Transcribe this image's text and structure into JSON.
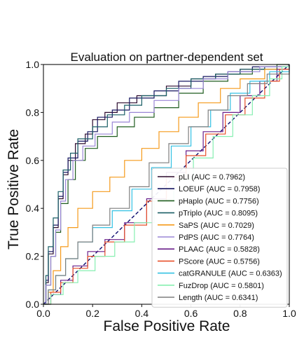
{
  "chart_data": {
    "type": "line",
    "title": "Evaluation on partner-dependent set",
    "xlabel": "False Positive Rate",
    "ylabel": "True Positive Rate",
    "xlim": [
      0,
      1
    ],
    "ylim": [
      0,
      1
    ],
    "xticks": [
      "0.0",
      "0.2",
      "0.4",
      "0.6",
      "0.8",
      "1.0"
    ],
    "yticks": [
      "0.0",
      "0.2",
      "0.4",
      "0.6",
      "0.8",
      "1.0"
    ],
    "grid": false,
    "legend_position": "lower-right",
    "diagonal_reference": true,
    "series": [
      {
        "name": "pLI (AUC = 0.7962)",
        "color": "#2b0a2e",
        "points": [
          [
            0,
            0
          ],
          [
            0.01,
            0.09
          ],
          [
            0.02,
            0.21
          ],
          [
            0.04,
            0.32
          ],
          [
            0.06,
            0.44
          ],
          [
            0.08,
            0.54
          ],
          [
            0.1,
            0.6
          ],
          [
            0.13,
            0.67
          ],
          [
            0.17,
            0.71
          ],
          [
            0.2,
            0.77
          ],
          [
            0.25,
            0.8
          ],
          [
            0.3,
            0.84
          ],
          [
            0.38,
            0.87
          ],
          [
            0.5,
            0.91
          ],
          [
            0.6,
            0.94
          ],
          [
            0.7,
            0.96
          ],
          [
            0.8,
            0.98
          ],
          [
            0.9,
            0.99
          ],
          [
            1,
            1
          ]
        ]
      },
      {
        "name": "LOEUF (AUC = 0.7958)",
        "color": "#161661",
        "points": [
          [
            0,
            0
          ],
          [
            0.01,
            0.1
          ],
          [
            0.02,
            0.22
          ],
          [
            0.04,
            0.33
          ],
          [
            0.06,
            0.45
          ],
          [
            0.08,
            0.55
          ],
          [
            0.1,
            0.61
          ],
          [
            0.14,
            0.68
          ],
          [
            0.18,
            0.72
          ],
          [
            0.22,
            0.78
          ],
          [
            0.28,
            0.81
          ],
          [
            0.35,
            0.86
          ],
          [
            0.45,
            0.89
          ],
          [
            0.55,
            0.93
          ],
          [
            0.65,
            0.95
          ],
          [
            0.75,
            0.97
          ],
          [
            0.85,
            0.99
          ],
          [
            1,
            1
          ]
        ]
      },
      {
        "name": "pHaplo (AUC = 0.7756)",
        "color": "#1f5c1f",
        "points": [
          [
            0,
            0
          ],
          [
            0.01,
            0.08
          ],
          [
            0.03,
            0.2
          ],
          [
            0.05,
            0.3
          ],
          [
            0.07,
            0.42
          ],
          [
            0.1,
            0.52
          ],
          [
            0.13,
            0.6
          ],
          [
            0.17,
            0.65
          ],
          [
            0.22,
            0.7
          ],
          [
            0.3,
            0.74
          ],
          [
            0.37,
            0.78
          ],
          [
            0.45,
            0.82
          ],
          [
            0.55,
            0.88
          ],
          [
            0.65,
            0.93
          ],
          [
            0.75,
            0.96
          ],
          [
            0.85,
            0.98
          ],
          [
            0.95,
            1
          ],
          [
            1,
            1
          ]
        ]
      },
      {
        "name": "pTriplo (AUC = 0.8095)",
        "color": "#1a5f66",
        "points": [
          [
            0,
            0
          ],
          [
            0.01,
            0.12
          ],
          [
            0.02,
            0.24
          ],
          [
            0.04,
            0.36
          ],
          [
            0.06,
            0.47
          ],
          [
            0.08,
            0.56
          ],
          [
            0.11,
            0.63
          ],
          [
            0.14,
            0.69
          ],
          [
            0.2,
            0.74
          ],
          [
            0.26,
            0.79
          ],
          [
            0.33,
            0.83
          ],
          [
            0.4,
            0.87
          ],
          [
            0.5,
            0.9
          ],
          [
            0.6,
            0.94
          ],
          [
            0.7,
            0.96
          ],
          [
            0.8,
            0.98
          ],
          [
            0.9,
            0.99
          ],
          [
            1,
            1
          ]
        ]
      },
      {
        "name": "SaPS (AUC = 0.7029)",
        "color": "#f59a1a",
        "points": [
          [
            0,
            0
          ],
          [
            0.02,
            0.05
          ],
          [
            0.04,
            0.14
          ],
          [
            0.07,
            0.24
          ],
          [
            0.1,
            0.32
          ],
          [
            0.14,
            0.4
          ],
          [
            0.2,
            0.47
          ],
          [
            0.27,
            0.53
          ],
          [
            0.33,
            0.6
          ],
          [
            0.4,
            0.65
          ],
          [
            0.47,
            0.72
          ],
          [
            0.55,
            0.78
          ],
          [
            0.63,
            0.84
          ],
          [
            0.72,
            0.9
          ],
          [
            0.8,
            0.94
          ],
          [
            0.9,
            0.98
          ],
          [
            1,
            1
          ]
        ]
      },
      {
        "name": "PdPS (AUC = 0.7764)",
        "color": "#9a86d6",
        "points": [
          [
            0,
            0
          ],
          [
            0.01,
            0.08
          ],
          [
            0.03,
            0.2
          ],
          [
            0.05,
            0.31
          ],
          [
            0.07,
            0.43
          ],
          [
            0.09,
            0.52
          ],
          [
            0.12,
            0.6
          ],
          [
            0.16,
            0.66
          ],
          [
            0.21,
            0.71
          ],
          [
            0.28,
            0.76
          ],
          [
            0.35,
            0.8
          ],
          [
            0.45,
            0.85
          ],
          [
            0.55,
            0.9
          ],
          [
            0.65,
            0.94
          ],
          [
            0.75,
            0.97
          ],
          [
            0.88,
            0.99
          ],
          [
            1,
            1
          ]
        ]
      },
      {
        "name": "PLAAC (AUC = 0.5828)",
        "color": "#6a1f8a",
        "points": [
          [
            0,
            0
          ],
          [
            0.03,
            0.04
          ],
          [
            0.07,
            0.1
          ],
          [
            0.12,
            0.16
          ],
          [
            0.18,
            0.22
          ],
          [
            0.25,
            0.27
          ],
          [
            0.33,
            0.34
          ],
          [
            0.42,
            0.44
          ],
          [
            0.5,
            0.55
          ],
          [
            0.58,
            0.64
          ],
          [
            0.65,
            0.72
          ],
          [
            0.73,
            0.8
          ],
          [
            0.8,
            0.87
          ],
          [
            0.88,
            0.93
          ],
          [
            0.95,
            0.98
          ],
          [
            1,
            1
          ]
        ]
      },
      {
        "name": "PScore (AUC = 0.5756)",
        "color": "#e8502a",
        "points": [
          [
            0,
            0
          ],
          [
            0.03,
            0.05
          ],
          [
            0.07,
            0.09
          ],
          [
            0.12,
            0.15
          ],
          [
            0.18,
            0.2
          ],
          [
            0.25,
            0.26
          ],
          [
            0.33,
            0.33
          ],
          [
            0.42,
            0.43
          ],
          [
            0.5,
            0.53
          ],
          [
            0.58,
            0.62
          ],
          [
            0.66,
            0.71
          ],
          [
            0.74,
            0.79
          ],
          [
            0.82,
            0.86
          ],
          [
            0.9,
            0.93
          ],
          [
            0.96,
            0.98
          ],
          [
            1,
            1
          ]
        ]
      },
      {
        "name": "catGRANULE (AUC = 0.6363)",
        "color": "#33c1e3",
        "points": [
          [
            0,
            0
          ],
          [
            0.02,
            0.06
          ],
          [
            0.05,
            0.12
          ],
          [
            0.09,
            0.19
          ],
          [
            0.14,
            0.26
          ],
          [
            0.2,
            0.32
          ],
          [
            0.28,
            0.39
          ],
          [
            0.36,
            0.48
          ],
          [
            0.44,
            0.57
          ],
          [
            0.52,
            0.66
          ],
          [
            0.6,
            0.74
          ],
          [
            0.68,
            0.81
          ],
          [
            0.76,
            0.88
          ],
          [
            0.84,
            0.93
          ],
          [
            0.92,
            0.97
          ],
          [
            1,
            1
          ]
        ]
      },
      {
        "name": "FuzDrop (AUC = 0.5801)",
        "color": "#86efb0",
        "points": [
          [
            0,
            0
          ],
          [
            0.03,
            0.04
          ],
          [
            0.08,
            0.09
          ],
          [
            0.14,
            0.14
          ],
          [
            0.21,
            0.2
          ],
          [
            0.29,
            0.26
          ],
          [
            0.37,
            0.34
          ],
          [
            0.45,
            0.43
          ],
          [
            0.53,
            0.52
          ],
          [
            0.61,
            0.61
          ],
          [
            0.69,
            0.7
          ],
          [
            0.77,
            0.79
          ],
          [
            0.85,
            0.87
          ],
          [
            0.92,
            0.94
          ],
          [
            0.97,
            0.99
          ],
          [
            1,
            1
          ]
        ]
      },
      {
        "name": "Length (AUC = 0.6341)",
        "color": "#7f7f7f",
        "points": [
          [
            0,
            0
          ],
          [
            0.02,
            0.06
          ],
          [
            0.05,
            0.12
          ],
          [
            0.09,
            0.19
          ],
          [
            0.14,
            0.26
          ],
          [
            0.2,
            0.33
          ],
          [
            0.27,
            0.4
          ],
          [
            0.35,
            0.49
          ],
          [
            0.43,
            0.59
          ],
          [
            0.51,
            0.67
          ],
          [
            0.59,
            0.74
          ],
          [
            0.67,
            0.81
          ],
          [
            0.75,
            0.87
          ],
          [
            0.83,
            0.92
          ],
          [
            0.91,
            0.96
          ],
          [
            1,
            1
          ]
        ]
      }
    ]
  }
}
